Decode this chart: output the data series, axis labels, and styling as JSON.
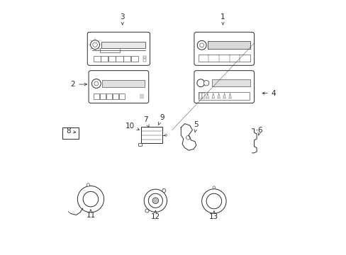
{
  "background_color": "#ffffff",
  "fig_width": 4.89,
  "fig_height": 3.6,
  "dpi": 100,
  "gray": "#2a2a2a",
  "lightgray": "#777777",
  "labels": [
    [
      1,
      0.695,
      0.935,
      0.695,
      0.895
    ],
    [
      2,
      0.105,
      0.67,
      0.17,
      0.67
    ],
    [
      3,
      0.3,
      0.935,
      0.3,
      0.895
    ],
    [
      4,
      0.895,
      0.635,
      0.84,
      0.635
    ],
    [
      5,
      0.59,
      0.51,
      0.585,
      0.48
    ],
    [
      6,
      0.84,
      0.49,
      0.835,
      0.468
    ],
    [
      7,
      0.39,
      0.53,
      0.405,
      0.5
    ],
    [
      8,
      0.088,
      0.487,
      0.118,
      0.48
    ],
    [
      9,
      0.455,
      0.54,
      0.438,
      0.502
    ],
    [
      10,
      0.33,
      0.505,
      0.368,
      0.49
    ],
    [
      11,
      0.175,
      0.155,
      0.175,
      0.178
    ],
    [
      12,
      0.43,
      0.15,
      0.43,
      0.175
    ],
    [
      13,
      0.66,
      0.148,
      0.66,
      0.173
    ]
  ]
}
